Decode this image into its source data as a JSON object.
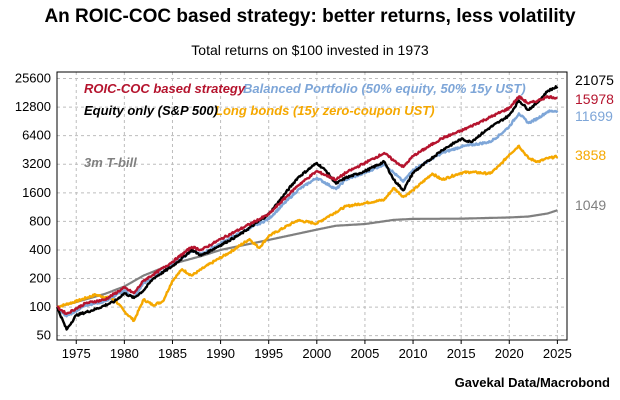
{
  "title": "An ROIC-COC based strategy: better returns, less volatility",
  "subtitle": "Total returns on $100 invested in 1973",
  "source": "Gavekal Data/Macrobond",
  "chart_data": {
    "type": "line",
    "yscale": "log",
    "xlim": [
      1973,
      2026
    ],
    "ylim": [
      45,
      30000
    ],
    "x_ticks": [
      1975,
      1980,
      1985,
      1990,
      1995,
      2000,
      2005,
      2010,
      2015,
      2020,
      2025
    ],
    "y_ticks": [
      50,
      100,
      200,
      400,
      800,
      1600,
      3200,
      6400,
      12800,
      25600
    ],
    "grid": true,
    "series": [
      {
        "name": "3m T-bill",
        "color": "#808080",
        "end_label": "1049",
        "x": [
          1973,
          1975,
          1978,
          1980,
          1982,
          1985,
          1988,
          1990,
          1995,
          2000,
          2002,
          2005,
          2008,
          2010,
          2015,
          2020,
          2022,
          2024,
          2025
        ],
        "y": [
          100,
          113,
          138,
          165,
          215,
          285,
          345,
          400,
          510,
          655,
          720,
          750,
          830,
          850,
          855,
          880,
          900,
          970,
          1049
        ]
      },
      {
        "name": "Long bonds (15y zero-coupon UST)",
        "color": "#f5a800",
        "end_label": "3858",
        "x": [
          1973,
          1975,
          1977,
          1979,
          1980,
          1981,
          1982,
          1983,
          1984,
          1985,
          1986,
          1987,
          1989,
          1991,
          1993,
          1994,
          1995,
          1998,
          2000,
          2001,
          2003,
          2005,
          2007,
          2008,
          2009,
          2010,
          2012,
          2013,
          2015,
          2016,
          2018,
          2019,
          2020,
          2021,
          2022,
          2023,
          2024,
          2025
        ],
        "y": [
          100,
          115,
          135,
          120,
          90,
          72,
          120,
          105,
          115,
          190,
          250,
          215,
          290,
          380,
          520,
          420,
          560,
          820,
          760,
          880,
          1150,
          1250,
          1350,
          1800,
          1450,
          1700,
          2550,
          2200,
          2600,
          2650,
          2550,
          3100,
          4050,
          5000,
          3700,
          3400,
          3700,
          3858
        ]
      },
      {
        "name": "Balanced Portfolio (50% equity, 50% 15y UST)",
        "color": "#7ea6d8",
        "end_label": "11699",
        "x": [
          1973,
          1974,
          1976,
          1978,
          1980,
          1981,
          1982,
          1983,
          1985,
          1987,
          1988,
          1990,
          1992,
          1995,
          1998,
          2000,
          2002,
          2003,
          2005,
          2007,
          2008,
          2009,
          2010,
          2013,
          2015,
          2018,
          2019,
          2020,
          2021,
          2022,
          2023,
          2024,
          2025
        ],
        "y": [
          100,
          80,
          105,
          115,
          150,
          125,
          180,
          200,
          280,
          390,
          360,
          470,
          600,
          850,
          1700,
          2300,
          1750,
          2200,
          2600,
          3200,
          2600,
          2100,
          2800,
          4200,
          4900,
          5500,
          6500,
          8000,
          11000,
          8700,
          9800,
          11500,
          11699
        ]
      },
      {
        "name": "Equity only (S&P 500)",
        "color": "#000000",
        "end_label": "21075",
        "x": [
          1973,
          1974,
          1975,
          1977,
          1979,
          1980,
          1981,
          1982,
          1983,
          1985,
          1987,
          1988,
          1990,
          1992,
          1995,
          1998,
          2000,
          2001,
          2002,
          2003,
          2005,
          2007,
          2008,
          2009,
          2010,
          2013,
          2015,
          2016,
          2018,
          2019,
          2020,
          2021,
          2022,
          2023,
          2024,
          2025
        ],
        "y": [
          100,
          58,
          82,
          95,
          115,
          140,
          125,
          150,
          200,
          270,
          400,
          350,
          450,
          580,
          950,
          2300,
          3300,
          2700,
          2000,
          2300,
          2700,
          3400,
          2200,
          1700,
          2600,
          4500,
          5900,
          5500,
          7800,
          9000,
          10500,
          15000,
          12000,
          14500,
          19000,
          21075
        ]
      },
      {
        "name": "ROIC-COC based strategy",
        "color": "#b5142e",
        "end_label": "15978",
        "x": [
          1973,
          1974,
          1976,
          1978,
          1980,
          1981,
          1982,
          1983,
          1985,
          1987,
          1988,
          1990,
          1992,
          1995,
          1998,
          2000,
          2002,
          2003,
          2005,
          2007,
          2008,
          2009,
          2010,
          2013,
          2015,
          2018,
          2020,
          2021,
          2022,
          2023,
          2024,
          2025
        ],
        "y": [
          100,
          85,
          110,
          120,
          160,
          140,
          190,
          220,
          300,
          430,
          400,
          520,
          660,
          950,
          1900,
          2700,
          2200,
          2600,
          3300,
          4200,
          3500,
          3000,
          3900,
          6000,
          7200,
          10000,
          12500,
          16500,
          14000,
          15000,
          16500,
          15978
        ]
      }
    ]
  }
}
